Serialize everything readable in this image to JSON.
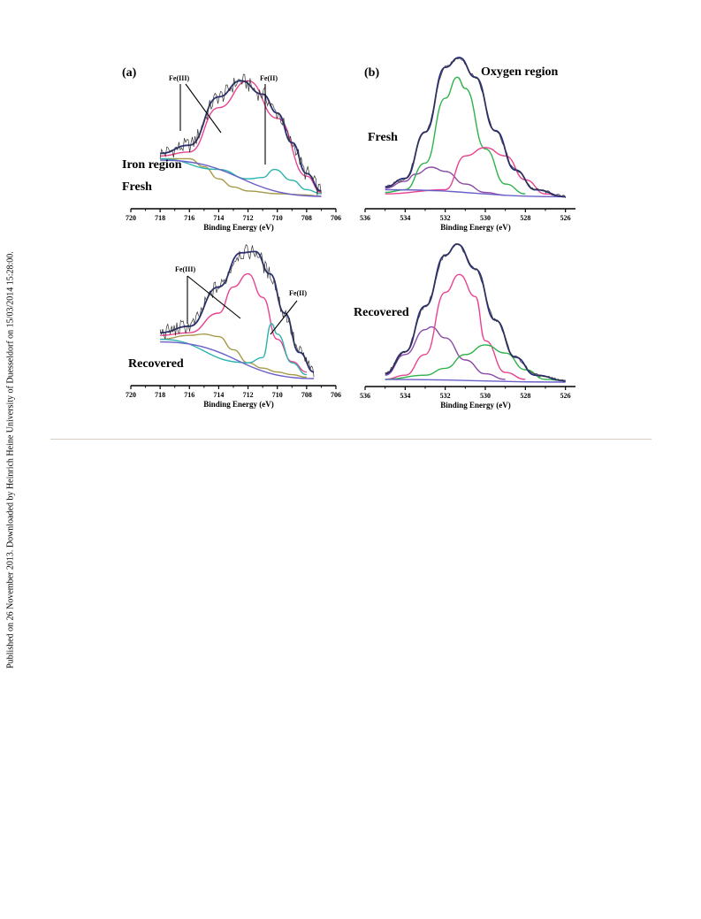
{
  "side_note": "Published on 26 November 2013. Downloaded by Heinrich Heine University of Duesseldorf on 15/03/2014 15:28:00.",
  "colors": {
    "raw": "#333333",
    "envelope": "#2b2f7a",
    "baseline": "#6a60c8",
    "magenta": "#e8438f",
    "olive": "#a59a48",
    "teal": "#2bb3ae",
    "green": "#2db24a",
    "purple": "#8a4aa6"
  },
  "chart_data": [
    {
      "id": "fe-fresh",
      "type": "line",
      "panel_label": "(a)",
      "texts": [
        "Iron region",
        "Fresh"
      ],
      "xlabel": "Binding Energy (eV)",
      "xlim": [
        720,
        706
      ],
      "reversed_x": true,
      "xticks": [
        "720",
        "718",
        "716",
        "714",
        "712",
        "710",
        "708",
        "706"
      ],
      "annotations": [
        "Fe(III)",
        "Fe(II)"
      ],
      "series": [
        {
          "color": "magenta",
          "role": "component",
          "x": [
            718,
            716,
            714,
            712,
            710,
            708,
            707
          ],
          "y": [
            0.3,
            0.33,
            0.66,
            0.86,
            0.58,
            0.15,
            0.03
          ]
        },
        {
          "color": "olive",
          "role": "component",
          "x": [
            718,
            716,
            715,
            714,
            713,
            712,
            710,
            708,
            707
          ],
          "y": [
            0.28,
            0.28,
            0.22,
            0.13,
            0.07,
            0.04,
            0.02,
            0.01,
            0.0
          ]
        },
        {
          "color": "teal",
          "role": "component",
          "x": [
            718,
            714,
            712,
            711,
            710.2,
            709,
            708,
            707
          ],
          "y": [
            0.28,
            0.2,
            0.13,
            0.14,
            0.2,
            0.12,
            0.05,
            0.02
          ]
        },
        {
          "color": "baseline",
          "role": "baseline",
          "x": [
            718,
            707
          ],
          "y": [
            0.27,
            0.0
          ]
        },
        {
          "color": "envelope",
          "role": "envelope",
          "x": [
            718,
            716,
            714,
            712.5,
            711,
            710,
            709,
            708,
            707
          ],
          "y": [
            0.32,
            0.38,
            0.74,
            0.86,
            0.76,
            0.62,
            0.4,
            0.17,
            0.04
          ]
        }
      ]
    },
    {
      "id": "o-fresh",
      "type": "line",
      "panel_label": "(b)",
      "texts": [
        "Oxygen region",
        "Fresh"
      ],
      "xlabel": "Binding Energy (eV)",
      "xlim": [
        536,
        525.5
      ],
      "reversed_x": true,
      "xticks": [
        "536",
        "534",
        "532",
        "530",
        "528",
        "526"
      ],
      "series": [
        {
          "color": "purple",
          "role": "component",
          "x": [
            535,
            534,
            533.5,
            532.7,
            532,
            531,
            530,
            529
          ],
          "y": [
            0.07,
            0.12,
            0.17,
            0.22,
            0.19,
            0.1,
            0.04,
            0.02
          ]
        },
        {
          "color": "green",
          "role": "component",
          "x": [
            535,
            534,
            533,
            532,
            531.4,
            531,
            530,
            529,
            528
          ],
          "y": [
            0.04,
            0.06,
            0.25,
            0.71,
            0.86,
            0.78,
            0.35,
            0.1,
            0.03
          ]
        },
        {
          "color": "magenta",
          "role": "component",
          "x": [
            535,
            532,
            531,
            530,
            529,
            528,
            527,
            526
          ],
          "y": [
            0.03,
            0.06,
            0.3,
            0.36,
            0.3,
            0.13,
            0.03,
            0.01
          ]
        },
        {
          "color": "baseline",
          "role": "baseline",
          "x": [
            535,
            526
          ],
          "y": [
            0.06,
            0.01
          ]
        },
        {
          "color": "envelope",
          "role": "envelope",
          "x": [
            535,
            534,
            533,
            532,
            531.3,
            530.5,
            529.5,
            528.5,
            527.5,
            526
          ],
          "y": [
            0.08,
            0.14,
            0.47,
            0.93,
            1.0,
            0.86,
            0.48,
            0.2,
            0.06,
            0.01
          ]
        }
      ]
    },
    {
      "id": "fe-recovered",
      "type": "line",
      "texts": [
        "Recovered"
      ],
      "xlabel": "Binding Energy (eV)",
      "xlim": [
        720,
        706
      ],
      "reversed_x": true,
      "xticks": [
        "720",
        "718",
        "716",
        "714",
        "712",
        "710",
        "708",
        "706"
      ],
      "annotations": [
        "Fe(III)",
        "Fe(II)"
      ],
      "series": [
        {
          "color": "magenta",
          "role": "component",
          "x": [
            718,
            716,
            714,
            713,
            712,
            711,
            710,
            709,
            708
          ],
          "y": [
            0.33,
            0.35,
            0.5,
            0.7,
            0.8,
            0.62,
            0.3,
            0.13,
            0.05
          ]
        },
        {
          "color": "olive",
          "role": "component",
          "x": [
            718,
            716,
            715,
            714,
            713,
            712,
            711,
            710,
            709,
            708
          ],
          "y": [
            0.3,
            0.33,
            0.34,
            0.32,
            0.22,
            0.12,
            0.08,
            0.05,
            0.03,
            0.01
          ]
        },
        {
          "color": "teal",
          "role": "component",
          "x": [
            718,
            712,
            711,
            710.4,
            710,
            709,
            708
          ],
          "y": [
            0.3,
            0.12,
            0.16,
            0.42,
            0.34,
            0.12,
            0.03
          ]
        },
        {
          "color": "baseline",
          "role": "baseline",
          "x": [
            718,
            707.5
          ],
          "y": [
            0.28,
            0.0
          ]
        },
        {
          "color": "envelope",
          "role": "envelope",
          "x": [
            718,
            716,
            714,
            712.5,
            711.5,
            710.5,
            709.5,
            708.5,
            707.5
          ],
          "y": [
            0.35,
            0.4,
            0.7,
            0.96,
            0.97,
            0.8,
            0.5,
            0.2,
            0.05
          ]
        }
      ]
    },
    {
      "id": "o-recovered",
      "type": "line",
      "texts": [
        "Recovered"
      ],
      "xlabel": "Binding Energy (eV)",
      "xlim": [
        536,
        525.5
      ],
      "reversed_x": true,
      "xticks": [
        "536",
        "534",
        "532",
        "530",
        "528",
        "526"
      ],
      "series": [
        {
          "color": "purple",
          "role": "component",
          "x": [
            535,
            534,
            533,
            532.7,
            532,
            531,
            530,
            529
          ],
          "y": [
            0.05,
            0.2,
            0.38,
            0.4,
            0.32,
            0.16,
            0.06,
            0.02
          ]
        },
        {
          "color": "magenta",
          "role": "component",
          "x": [
            535,
            534,
            533,
            532,
            531.3,
            530.5,
            530,
            529,
            528
          ],
          "y": [
            0.02,
            0.05,
            0.2,
            0.65,
            0.78,
            0.62,
            0.3,
            0.07,
            0.02
          ]
        },
        {
          "color": "green",
          "role": "component",
          "x": [
            535,
            533,
            532,
            531,
            530,
            529,
            528,
            527,
            526
          ],
          "y": [
            0.02,
            0.05,
            0.1,
            0.2,
            0.27,
            0.21,
            0.09,
            0.02,
            0.01
          ]
        },
        {
          "color": "baseline",
          "role": "baseline",
          "x": [
            535,
            526
          ],
          "y": [
            0.02,
            0.0
          ]
        },
        {
          "color": "envelope",
          "role": "envelope",
          "x": [
            535,
            534,
            533,
            532,
            531.4,
            530.5,
            529.5,
            528.5,
            527.5,
            526
          ],
          "y": [
            0.06,
            0.22,
            0.55,
            0.92,
            1.0,
            0.82,
            0.45,
            0.18,
            0.05,
            0.01
          ]
        }
      ]
    }
  ]
}
